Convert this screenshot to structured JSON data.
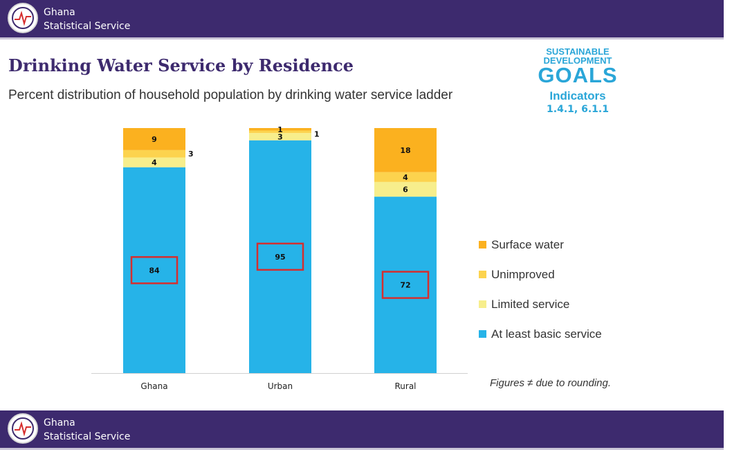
{
  "header": {
    "org_line1": "Ghana",
    "org_line2": "Statistical Service"
  },
  "footer": {
    "org_line1": "Ghana",
    "org_line2": "Statistical Service"
  },
  "title": "Drinking Water Service by Residence",
  "subtitle": "Percent distribution of household population by drinking water service ladder",
  "sdg_badge": {
    "line1": "SUSTAINABLE",
    "line2": "DEVELOPMENT",
    "line3": "GOALS",
    "line4": "Indicators",
    "line5": "1.4.1, 6.1.1"
  },
  "note": "Figures ≠ due to rounding.",
  "colors": {
    "brand_band": "#3d2a6e",
    "sdg_blue": "#2aa6d8",
    "highlight_box": "#d62e2e"
  },
  "chart_data": {
    "type": "bar",
    "stacked": true,
    "categories": [
      "Ghana",
      "Urban",
      "Rural"
    ],
    "series": [
      {
        "name": "At least basic service",
        "values": [
          84,
          95,
          72
        ],
        "color": "#26b3e8"
      },
      {
        "name": "Limited service",
        "values": [
          4,
          3,
          6
        ],
        "color": "#f7ee8c"
      },
      {
        "name": "Unimproved",
        "values": [
          3,
          1,
          4
        ],
        "color": "#fcd34e"
      },
      {
        "name": "Surface water",
        "values": [
          9,
          1,
          18
        ],
        "color": "#fbb11f"
      }
    ],
    "legend_order": [
      "Surface water",
      "Unimproved",
      "Limited service",
      "At least basic service"
    ],
    "legend_position": "right",
    "highlighted_series": "At least basic service",
    "ylim": [
      0,
      100
    ],
    "grid": false,
    "xlabel": "",
    "ylabel": ""
  }
}
